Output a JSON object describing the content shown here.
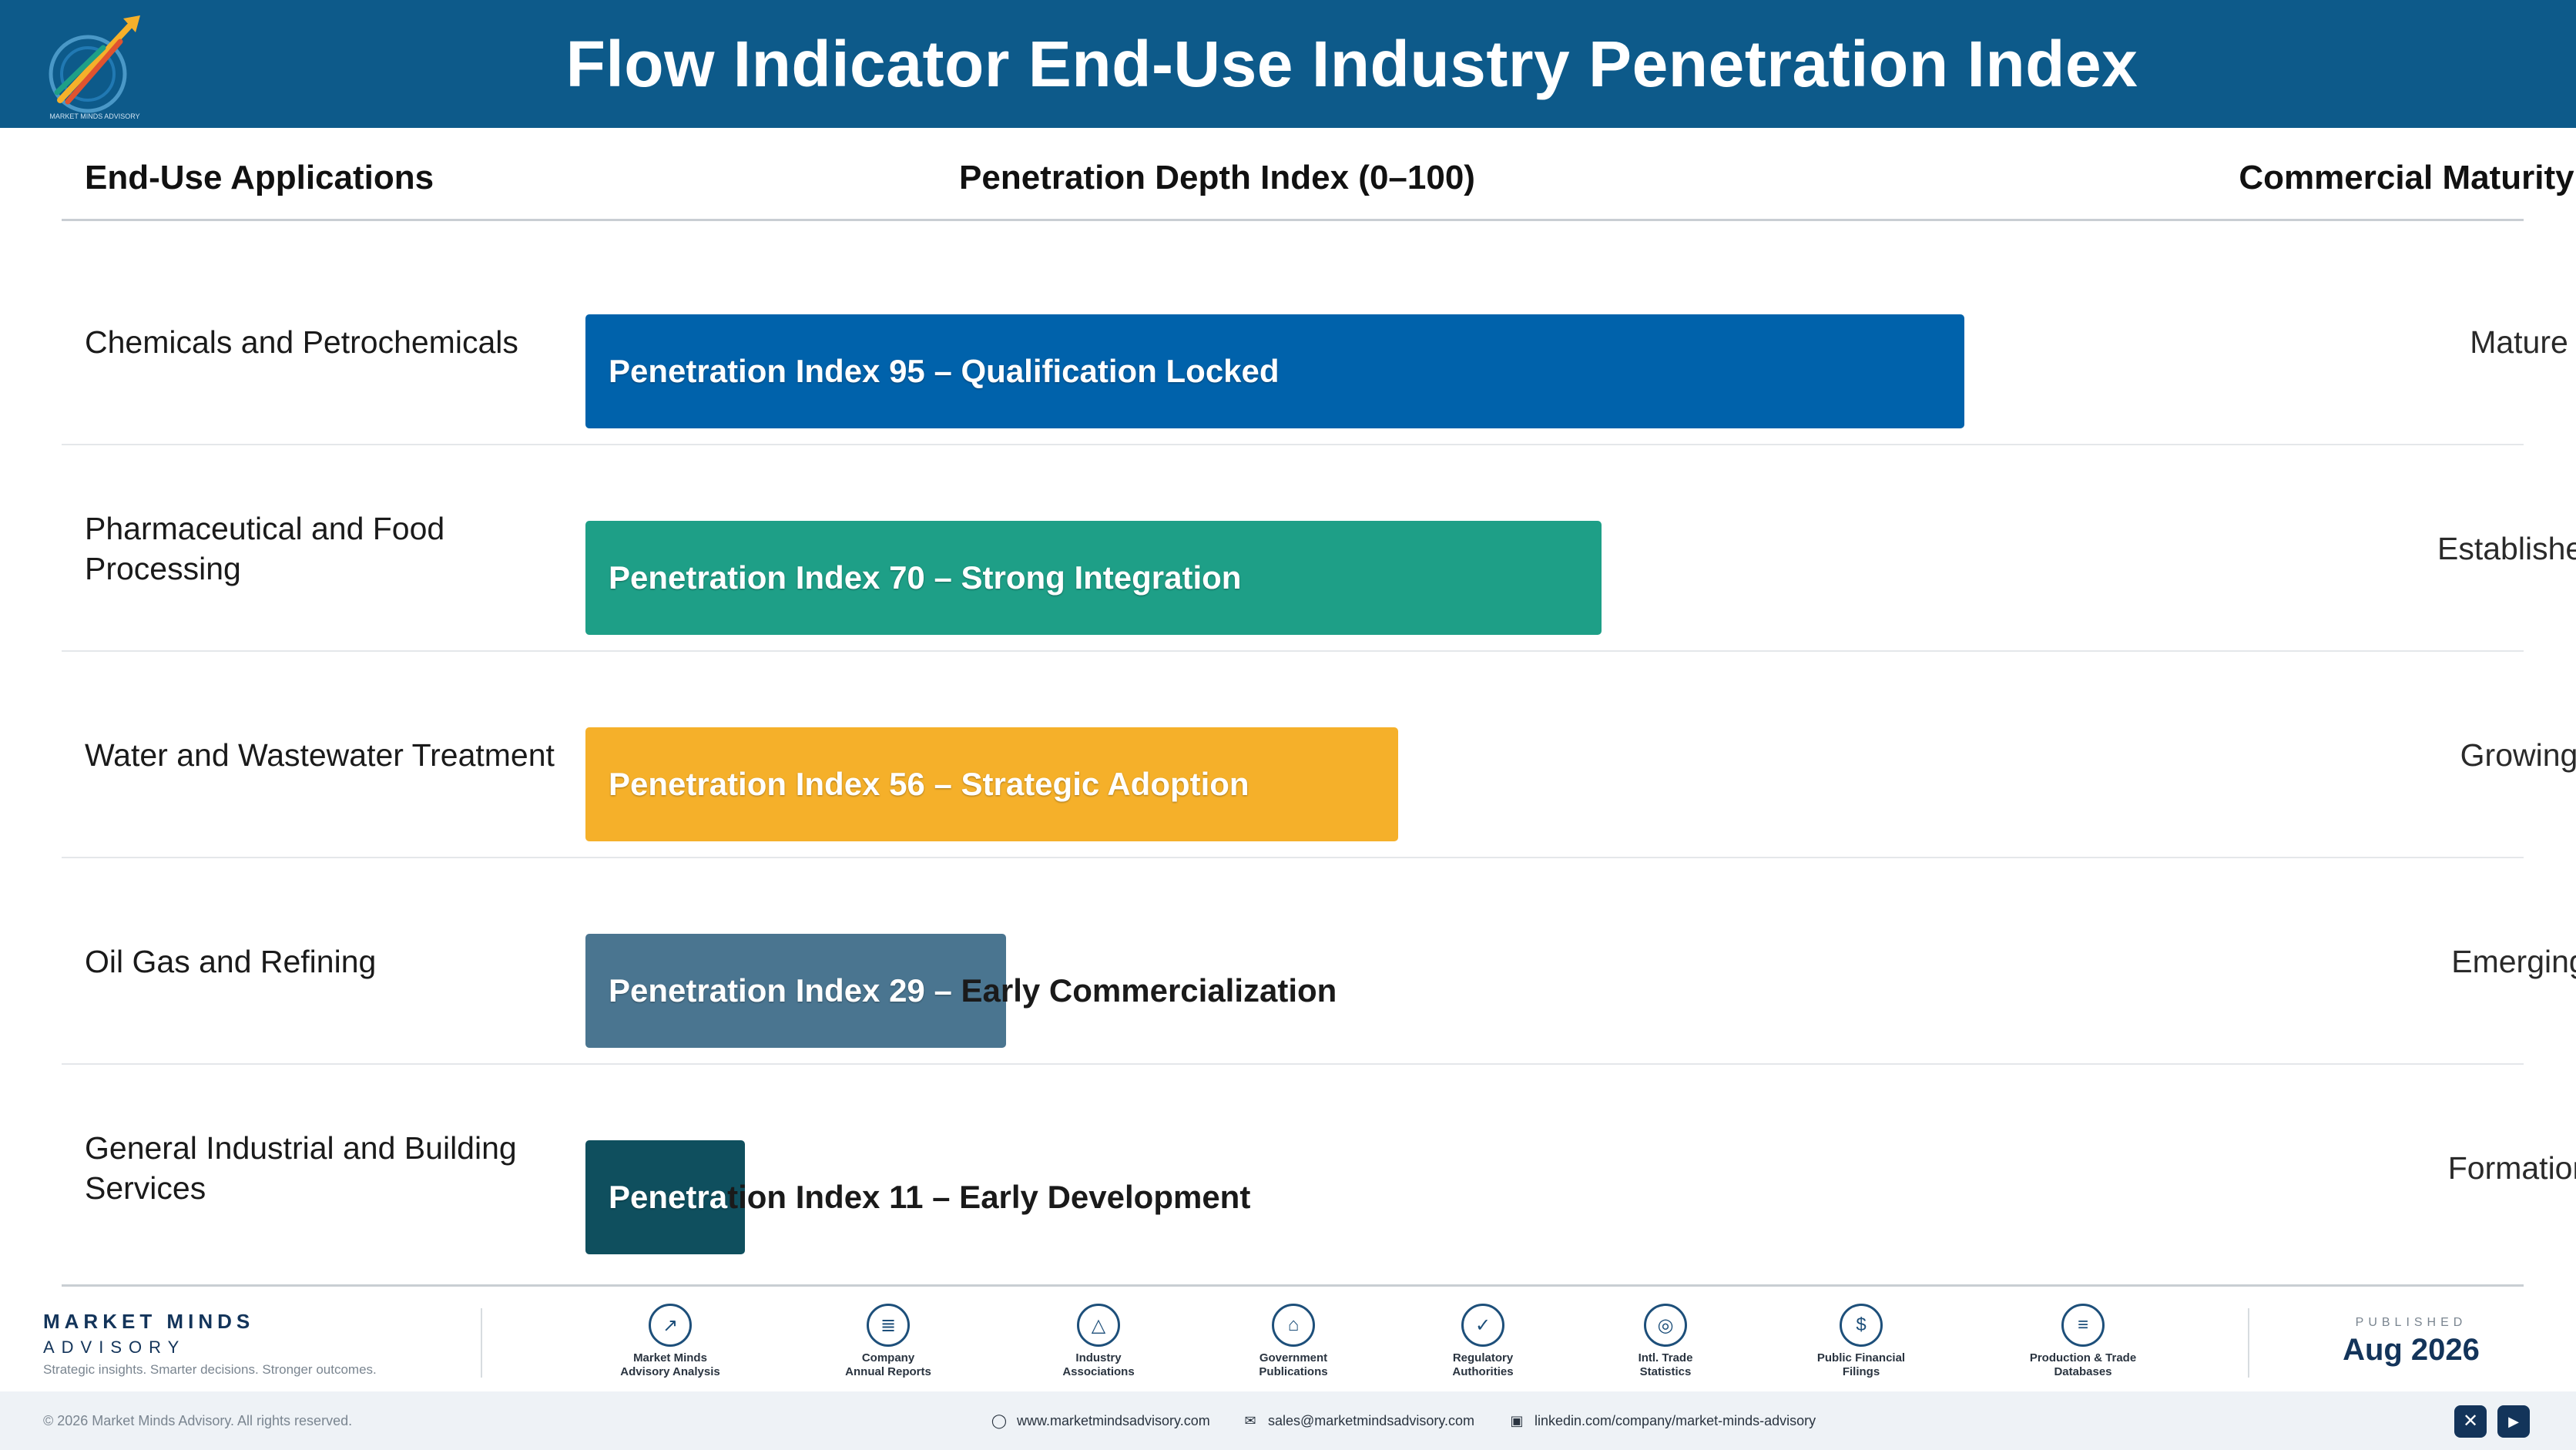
{
  "header": {
    "title": "Flow Indicator End-Use Industry Penetration Index",
    "logo_icon": "market-minds-logo-icon",
    "colors": {
      "background": "#0d5a8a"
    }
  },
  "columns": {
    "applications": "End-Use Applications",
    "index": "Penetration Depth Index (0–100)",
    "stage": "Commercial Maturity Stage"
  },
  "chart_data": {
    "type": "bar",
    "orientation": "horizontal",
    "title": "",
    "xlim": [
      0,
      100
    ],
    "grid": false,
    "categories": [
      "Chemicals and Petrochemicals",
      "Pharmaceutical and Food Processing",
      "Water and Wastewater Treatment",
      "Oil Gas and Refining",
      "General Industrial and Building Services"
    ],
    "values": [
      95,
      70,
      56,
      29,
      11
    ],
    "bar_labels": [
      "Penetration Index 95 – Qualification Locked",
      "Penetration Index 70 – Strong Integration",
      "Penetration Index 56 – Strategic Adoption",
      "Penetration Index 29 – Early Commercialization",
      "Penetration Index 11 – Early Development"
    ],
    "stages": [
      "Mature",
      "Established",
      "Growing",
      "Emerging",
      "Formation"
    ],
    "colors": [
      "#0062ab",
      "#1e9f87",
      "#f5b02a",
      "#4a7590",
      "#0f4f5e"
    ]
  },
  "footer": {
    "brand_name": "MARKET MINDS",
    "brand_sub": "ADVISORY",
    "brand_tagline": "Strategic insights. Smarter decisions. Stronger outcomes.",
    "sources": [
      {
        "line1": "Market Minds",
        "line2": "Advisory Analysis",
        "icon": "trend-chart-icon"
      },
      {
        "line1": "Company",
        "line2": "Annual Reports",
        "icon": "document-icon"
      },
      {
        "line1": "Industry",
        "line2": "Associations",
        "icon": "network-icon"
      },
      {
        "line1": "Government",
        "line2": "Publications",
        "icon": "government-building-icon"
      },
      {
        "line1": "Regulatory",
        "line2": "Authorities",
        "icon": "shield-check-icon"
      },
      {
        "line1": "Intl. Trade",
        "line2": "Statistics",
        "icon": "globe-icon"
      },
      {
        "line1": "Public Financial",
        "line2": "Filings",
        "icon": "currency-icon"
      },
      {
        "line1": "Production & Trade",
        "line2": "Databases",
        "icon": "database-icon"
      }
    ],
    "published_label": "PUBLISHED",
    "published_date": "Aug 2026",
    "copyright": "© 2026 Market Minds Advisory. All rights reserved.",
    "website": "www.marketmindsadvisory.com",
    "email": "sales@marketmindsadvisory.com",
    "linkedin": "linkedin.com/company/market-minds-advisory",
    "social_x_glyph": "✕",
    "social_youtube_glyph": "▶"
  }
}
